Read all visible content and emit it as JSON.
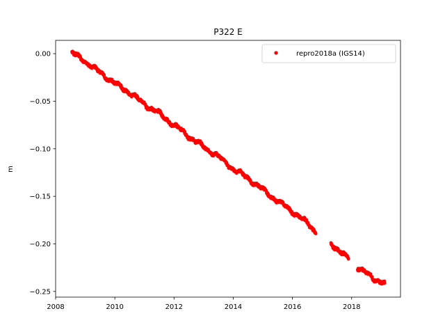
{
  "chart_data": {
    "type": "scatter",
    "title": "P322 E",
    "xlabel": "",
    "ylabel": "m",
    "xlim": [
      2008.0,
      2019.65
    ],
    "ylim": [
      -0.256,
      0.014
    ],
    "xticks": [
      2008,
      2010,
      2012,
      2014,
      2016,
      2018
    ],
    "yticks": [
      0.0,
      -0.05,
      -0.1,
      -0.15,
      -0.2,
      -0.25
    ],
    "xtick_labels": [
      "2008",
      "2010",
      "2012",
      "2014",
      "2016",
      "2018"
    ],
    "ytick_labels": [
      "0.00",
      "−0.05",
      "−0.10",
      "−0.15",
      "−0.20",
      "−0.25"
    ],
    "grid": false,
    "legend_position": "upper-right",
    "series": [
      {
        "name": "repro2018a (IGS14)",
        "color": "#ff0000",
        "marker": "circle",
        "segments": [
          {
            "x_start": 2008.55,
            "x_end": 2016.8
          },
          {
            "x_start": 2017.3,
            "x_end": 2017.9
          },
          {
            "x_start": 2018.2,
            "x_end": 2019.12
          }
        ],
        "x": [
          2008.55,
          2009.0,
          2009.5,
          2010.0,
          2010.5,
          2011.0,
          2011.5,
          2012.0,
          2012.5,
          2013.0,
          2013.5,
          2014.0,
          2014.5,
          2015.0,
          2015.5,
          2016.0,
          2016.5,
          2016.8,
          2017.3,
          2017.6,
          2017.9,
          2018.2,
          2018.5,
          2018.8,
          2019.12
        ],
        "y": [
          0.001,
          -0.008,
          -0.02,
          -0.031,
          -0.041,
          -0.053,
          -0.063,
          -0.075,
          -0.087,
          -0.098,
          -0.108,
          -0.121,
          -0.131,
          -0.143,
          -0.155,
          -0.166,
          -0.178,
          -0.188,
          -0.199,
          -0.208,
          -0.216,
          -0.225,
          -0.231,
          -0.237,
          -0.242
        ]
      }
    ]
  }
}
